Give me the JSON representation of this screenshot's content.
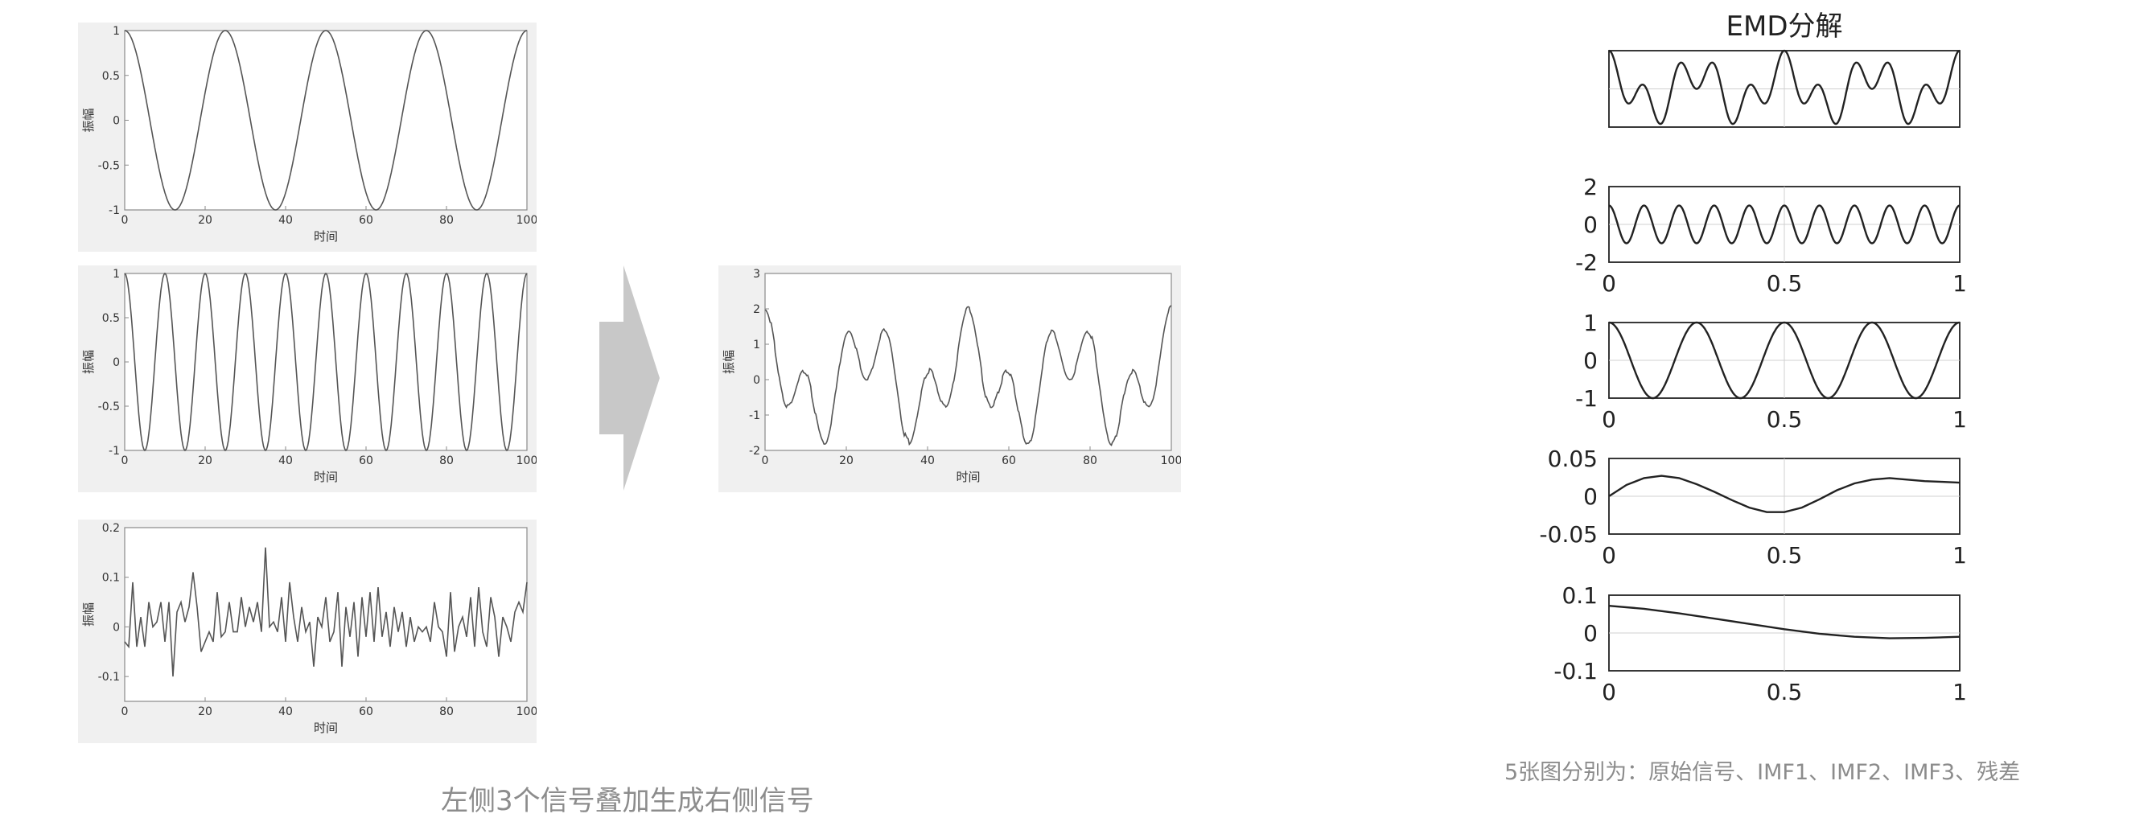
{
  "chart_data": [
    {
      "type": "line",
      "signal": "cosine",
      "amplitude": 1,
      "period": 25,
      "xlim": [
        0,
        100
      ],
      "ylim": [
        -1,
        1
      ],
      "xticks": [
        "0",
        "20",
        "40",
        "60",
        "80",
        "100"
      ],
      "yticks": [
        "1",
        "0.5",
        "0",
        "-0.5",
        "-1"
      ],
      "xlabel": "时间",
      "ylabel": "振幅"
    },
    {
      "type": "line",
      "signal": "cosine",
      "amplitude": 1,
      "period": 10,
      "xlim": [
        0,
        100
      ],
      "ylim": [
        -1,
        1
      ],
      "xticks": [
        "0",
        "20",
        "40",
        "60",
        "80",
        "100"
      ],
      "yticks": [
        "1",
        "0.5",
        "0",
        "-0.5",
        "-1"
      ],
      "xlabel": "时间",
      "ylabel": "振幅"
    },
    {
      "type": "line",
      "signal": "noise",
      "xlim": [
        0,
        100
      ],
      "ylim": [
        -0.15,
        0.2
      ],
      "x": [
        0,
        1,
        2,
        3,
        4,
        5,
        6,
        7,
        8,
        9,
        10,
        11,
        12,
        13,
        14,
        15,
        16,
        17,
        18,
        19,
        20,
        21,
        22,
        23,
        24,
        25,
        26,
        27,
        28,
        29,
        30,
        31,
        32,
        33,
        34,
        35,
        36,
        37,
        38,
        39,
        40,
        41,
        42,
        43,
        44,
        45,
        46,
        47,
        48,
        49,
        50,
        51,
        52,
        53,
        54,
        55,
        56,
        57,
        58,
        59,
        60,
        61,
        62,
        63,
        64,
        65,
        66,
        67,
        68,
        69,
        70,
        71,
        72,
        73,
        74,
        75,
        76,
        77,
        78,
        79,
        80,
        81,
        82,
        83,
        84,
        85,
        86,
        87,
        88,
        89,
        90,
        91,
        92,
        93,
        94,
        95,
        96,
        97,
        98,
        99,
        100
      ],
      "y": [
        -0.03,
        -0.04,
        0.09,
        -0.04,
        0.02,
        -0.04,
        0.05,
        0.0,
        0.01,
        0.05,
        -0.03,
        0.05,
        -0.1,
        0.03,
        0.05,
        0.01,
        0.04,
        0.11,
        0.04,
        -0.05,
        -0.03,
        -0.01,
        -0.03,
        0.07,
        -0.02,
        -0.01,
        0.05,
        -0.01,
        -0.01,
        0.06,
        0.0,
        0.04,
        0.01,
        0.05,
        -0.01,
        0.16,
        0.0,
        0.01,
        -0.01,
        0.06,
        -0.03,
        0.09,
        0.02,
        -0.03,
        0.04,
        -0.01,
        0.01,
        -0.08,
        0.02,
        0.0,
        0.06,
        -0.03,
        -0.01,
        0.07,
        -0.08,
        0.04,
        -0.02,
        0.05,
        -0.06,
        0.06,
        -0.02,
        0.07,
        -0.03,
        0.08,
        -0.02,
        0.03,
        -0.04,
        0.04,
        -0.01,
        0.03,
        -0.04,
        0.02,
        -0.03,
        0.0,
        -0.01,
        0.0,
        -0.03,
        0.05,
        0.0,
        -0.01,
        -0.06,
        0.07,
        -0.05,
        0.0,
        0.02,
        -0.02,
        0.06,
        -0.04,
        0.08,
        -0.01,
        -0.04,
        0.06,
        0.02,
        -0.06,
        0.02,
        0.0,
        -0.03,
        0.03,
        0.05,
        0.03,
        0.09
      ],
      "xticks": [
        "0",
        "20",
        "40",
        "60",
        "80",
        "100"
      ],
      "yticks": [
        "0.2",
        "0.1",
        "0",
        "-0.1"
      ],
      "xlabel": "时间",
      "ylabel": "振幅"
    },
    {
      "type": "line",
      "signal": "sum_of_three",
      "xlim": [
        0,
        100
      ],
      "ylim": [
        -2,
        3
      ],
      "xticks": [
        "0",
        "20",
        "40",
        "60",
        "80",
        "100"
      ],
      "yticks": [
        "3",
        "2",
        "1",
        "0",
        "-1",
        "-2"
      ],
      "xlabel": "时间",
      "ylabel": "振幅"
    },
    {
      "type": "line",
      "panel": "原始信号",
      "xlim": [
        0,
        1
      ],
      "ylim": [
        -2,
        2
      ],
      "title": "EMD分解"
    },
    {
      "type": "line",
      "panel": "IMF1",
      "cycles": 10,
      "xlim": [
        0,
        1
      ],
      "ylim": [
        -2,
        2
      ],
      "xticks": [
        "0",
        "0.5",
        "1"
      ],
      "yticks": [
        "2",
        "0",
        "-2"
      ]
    },
    {
      "type": "line",
      "panel": "IMF2",
      "cycles": 4,
      "xlim": [
        0,
        1
      ],
      "ylim": [
        -1,
        1
      ],
      "xticks": [
        "0",
        "0.5",
        "1"
      ],
      "yticks": [
        "1",
        "0",
        "-1"
      ]
    },
    {
      "type": "line",
      "panel": "IMF3",
      "xlim": [
        0,
        1
      ],
      "ylim": [
        -0.05,
        0.05
      ],
      "x": [
        0,
        0.05,
        0.1,
        0.15,
        0.2,
        0.25,
        0.3,
        0.35,
        0.4,
        0.45,
        0.5,
        0.55,
        0.6,
        0.65,
        0.7,
        0.75,
        0.8,
        0.85,
        0.9,
        0.95,
        1
      ],
      "y": [
        0,
        0.015,
        0.024,
        0.027,
        0.024,
        0.016,
        0.006,
        -0.005,
        -0.015,
        -0.021,
        -0.021,
        -0.015,
        -0.004,
        0.008,
        0.017,
        0.022,
        0.024,
        0.022,
        0.02,
        0.019,
        0.018
      ],
      "xticks": [
        "0",
        "0.5",
        "1"
      ],
      "yticks": [
        "0.05",
        "0",
        "-0.05"
      ]
    },
    {
      "type": "line",
      "panel": "残差",
      "xlim": [
        0,
        1
      ],
      "ylim": [
        -0.1,
        0.1
      ],
      "x": [
        0,
        0.1,
        0.2,
        0.3,
        0.4,
        0.5,
        0.6,
        0.7,
        0.8,
        0.9,
        1
      ],
      "y": [
        0.072,
        0.064,
        0.052,
        0.038,
        0.024,
        0.01,
        -0.002,
        -0.01,
        -0.014,
        -0.013,
        -0.01
      ],
      "xticks": [
        "0",
        "0.5",
        "1"
      ],
      "yticks": [
        "0.1",
        "0",
        "-0.1"
      ]
    }
  ],
  "captions": {
    "right": "5张图分别为：原始信号、IMF1、IMF2、IMF3、残差",
    "bottom": "左侧3个信号叠加生成右侧信号"
  },
  "colors": {
    "panel_bg": "#f0f0f0",
    "line_left": "#555555",
    "line_right": "#222222",
    "arrow": "#c8c8c8"
  }
}
